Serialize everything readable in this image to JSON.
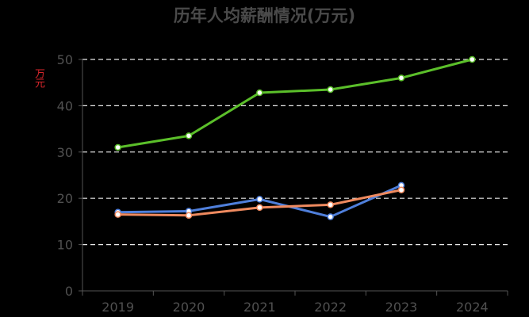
{
  "chart_data": {
    "type": "line",
    "title": "历年人均薪酬情况(万元)",
    "ylabel": "万元",
    "xlabel": "",
    "categories": [
      "2019",
      "2020",
      "2021",
      "2022",
      "2023",
      "2024"
    ],
    "ylim": [
      0,
      50
    ],
    "yticks": [
      0,
      10,
      20,
      30,
      40,
      50
    ],
    "grid": true,
    "series": [
      {
        "color": "#5bbf2a",
        "values": [
          31.0,
          33.5,
          42.8,
          43.5,
          46.0,
          50.0
        ]
      },
      {
        "color": "#4f7fdb",
        "values": [
          17.0,
          17.2,
          19.8,
          16.0,
          22.8,
          null
        ]
      },
      {
        "color": "#ef8a5f",
        "values": [
          16.5,
          16.3,
          18.0,
          18.6,
          21.8,
          null
        ]
      }
    ]
  }
}
